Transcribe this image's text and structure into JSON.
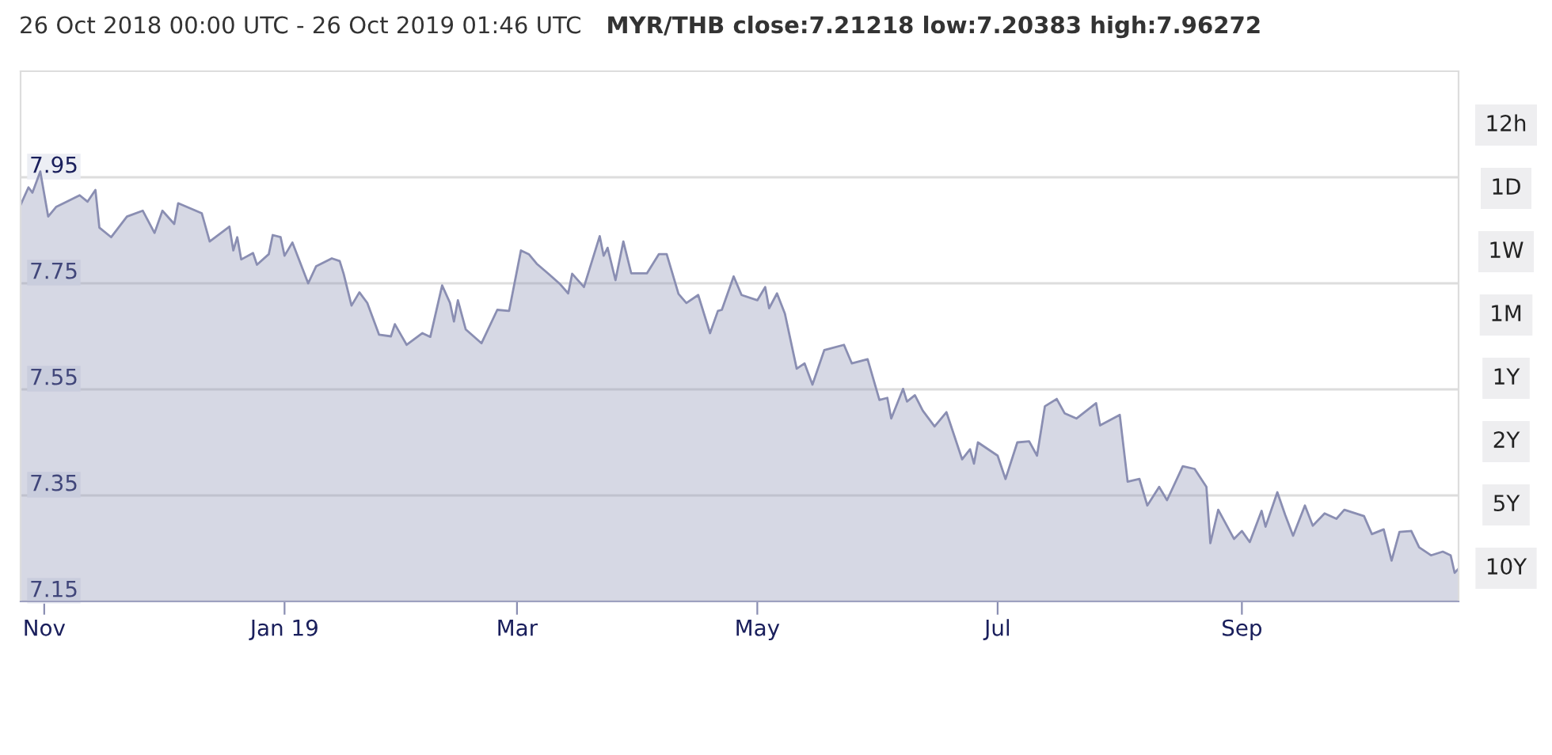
{
  "chart_data": {
    "type": "area",
    "title": "26 Oct 2018 00:00 UTC - 26 Oct 2019 01:46 UTC",
    "subtitle": "MYR/THB close:7.21218 low:7.20383 high:7.96272",
    "annotations": [
      "12h",
      "1D",
      "1W",
      "1M",
      "1Y",
      "2Y",
      "5Y",
      "10Y"
    ],
    "x": [
      "2018-10-26",
      "2018-10-28",
      "2018-10-29",
      "2018-10-31",
      "2018-11-02",
      "2018-11-04",
      "2018-11-10",
      "2018-11-12",
      "2018-11-14",
      "2018-11-15",
      "2018-11-18",
      "2018-11-22",
      "2018-11-26",
      "2018-11-29",
      "2018-12-01",
      "2018-12-04",
      "2018-12-05",
      "2018-12-11",
      "2018-12-13",
      "2018-12-18",
      "2018-12-19",
      "2018-12-20",
      "2018-12-21",
      "2018-12-24",
      "2018-12-25",
      "2018-12-28",
      "2018-12-29",
      "2018-12-31",
      "2019-01-01",
      "2019-01-03",
      "2019-01-07",
      "2019-01-09",
      "2019-01-13",
      "2019-01-15",
      "2019-01-16",
      "2019-01-18",
      "2019-01-20",
      "2019-01-22",
      "2019-01-25",
      "2019-01-28",
      "2019-01-29",
      "2019-02-01",
      "2019-02-05",
      "2019-02-07",
      "2019-02-10",
      "2019-02-12",
      "2019-02-13",
      "2019-02-14",
      "2019-02-16",
      "2019-02-20",
      "2019-02-24",
      "2019-02-27",
      "2019-03-02",
      "2019-03-04",
      "2019-03-06",
      "2019-03-09",
      "2019-03-12",
      "2019-03-14",
      "2019-03-15",
      "2019-03-18",
      "2019-03-22",
      "2019-03-23",
      "2019-03-24",
      "2019-03-26",
      "2019-03-28",
      "2019-03-30",
      "2019-04-03",
      "2019-04-06",
      "2019-04-08",
      "2019-04-11",
      "2019-04-13",
      "2019-04-16",
      "2019-04-19",
      "2019-04-21",
      "2019-04-22",
      "2019-04-25",
      "2019-04-27",
      "2019-05-01",
      "2019-05-03",
      "2019-05-04",
      "2019-05-06",
      "2019-05-08",
      "2019-05-11",
      "2019-05-13",
      "2019-05-15",
      "2019-05-18",
      "2019-05-23",
      "2019-05-25",
      "2019-05-29",
      "2019-06-01",
      "2019-06-03",
      "2019-06-04",
      "2019-06-07",
      "2019-06-08",
      "2019-06-10",
      "2019-06-12",
      "2019-06-15",
      "2019-06-18",
      "2019-06-22",
      "2019-06-24",
      "2019-06-25",
      "2019-06-26",
      "2019-07-01",
      "2019-07-03",
      "2019-07-06",
      "2019-07-09",
      "2019-07-11",
      "2019-07-13",
      "2019-07-16",
      "2019-07-18",
      "2019-07-21",
      "2019-07-26",
      "2019-07-27",
      "2019-08-01",
      "2019-08-03",
      "2019-08-06",
      "2019-08-08",
      "2019-08-11",
      "2019-08-13",
      "2019-08-17",
      "2019-08-20",
      "2019-08-23",
      "2019-08-24",
      "2019-08-26",
      "2019-08-30",
      "2019-09-01",
      "2019-09-03",
      "2019-09-06",
      "2019-09-07",
      "2019-09-10",
      "2019-09-12",
      "2019-09-14",
      "2019-09-17",
      "2019-09-19",
      "2019-09-22",
      "2019-09-25",
      "2019-09-27",
      "2019-10-02",
      "2019-10-04",
      "2019-10-07",
      "2019-10-09",
      "2019-10-11",
      "2019-10-14",
      "2019-10-16",
      "2019-10-19",
      "2019-10-22",
      "2019-10-24",
      "2019-10-25",
      "2019-10-26"
    ],
    "series": [
      {
        "color": "#8a8eb2",
        "values": [
          7.898,
          7.931,
          7.921,
          7.961,
          7.876,
          7.894,
          7.916,
          7.904,
          7.926,
          7.855,
          7.837,
          7.876,
          7.887,
          7.845,
          7.887,
          7.862,
          7.901,
          7.882,
          7.829,
          7.857,
          7.812,
          7.837,
          7.795,
          7.807,
          7.785,
          7.805,
          7.841,
          7.837,
          7.802,
          7.827,
          7.75,
          7.782,
          7.797,
          7.792,
          7.768,
          7.708,
          7.733,
          7.713,
          7.653,
          7.65,
          7.673,
          7.634,
          7.656,
          7.649,
          7.746,
          7.713,
          7.678,
          7.718,
          7.663,
          7.637,
          7.7,
          7.698,
          7.812,
          7.805,
          7.787,
          7.768,
          7.748,
          7.731,
          7.768,
          7.743,
          7.839,
          7.802,
          7.817,
          7.756,
          7.829,
          7.769,
          7.769,
          7.805,
          7.805,
          7.73,
          7.713,
          7.728,
          7.656,
          7.698,
          7.7,
          7.763,
          7.728,
          7.718,
          7.743,
          7.703,
          7.731,
          7.693,
          7.589,
          7.599,
          7.559,
          7.624,
          7.634,
          7.599,
          7.607,
          7.53,
          7.534,
          7.495,
          7.551,
          7.527,
          7.539,
          7.51,
          7.48,
          7.507,
          7.418,
          7.437,
          7.41,
          7.45,
          7.425,
          7.381,
          7.45,
          7.452,
          7.425,
          7.518,
          7.532,
          7.505,
          7.495,
          7.524,
          7.482,
          7.502,
          7.376,
          7.381,
          7.331,
          7.366,
          7.341,
          7.405,
          7.4,
          7.366,
          7.26,
          7.323,
          7.268,
          7.283,
          7.262,
          7.321,
          7.291,
          7.356,
          7.313,
          7.274,
          7.331,
          7.293,
          7.316,
          7.306,
          7.323,
          7.311,
          7.277,
          7.286,
          7.227,
          7.281,
          7.283,
          7.252,
          7.237,
          7.244,
          7.237,
          7.204,
          7.212
        ]
      }
    ],
    "xlim": [
      "2018-10-26",
      "2019-10-26"
    ],
    "xticks": [
      {
        "value": "2018-11-01",
        "label": "Nov"
      },
      {
        "value": "2019-01-01",
        "label": "Jan 19"
      },
      {
        "value": "2019-03-01",
        "label": "Mar"
      },
      {
        "value": "2019-05-01",
        "label": "May"
      },
      {
        "value": "2019-07-01",
        "label": "Jul"
      },
      {
        "value": "2019-09-01",
        "label": "Sep"
      }
    ],
    "ylim": [
      7.15,
      8.15
    ],
    "yticks": [
      7.15,
      7.35,
      7.55,
      7.75,
      7.95
    ],
    "grid": "y",
    "legend": false
  }
}
